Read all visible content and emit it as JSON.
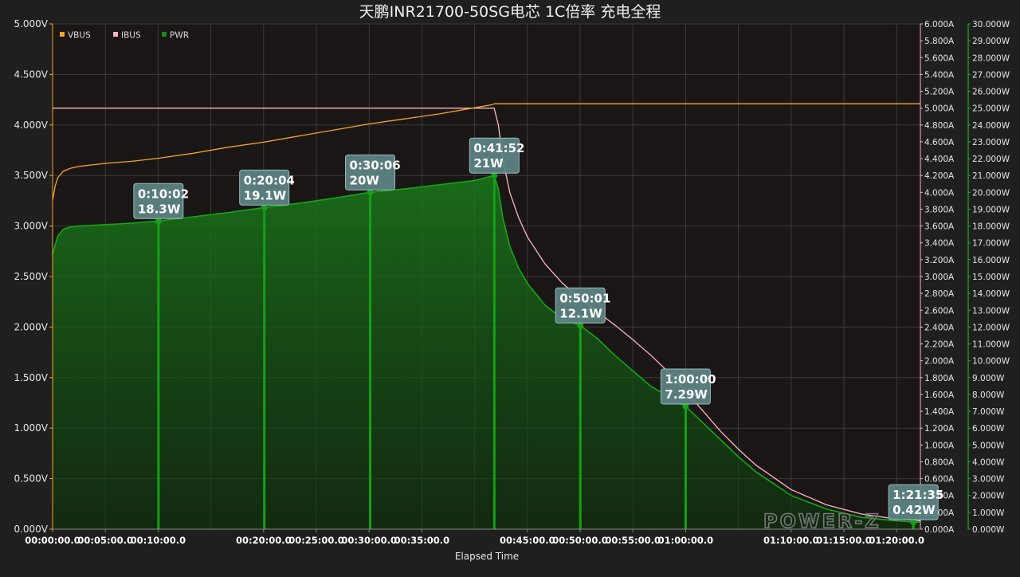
{
  "chart_data": {
    "type": "line",
    "title": "天鹏INR21700-50SG电芯 1C倍率 充电全程",
    "xlabel": "Elapsed Time",
    "x_unit": "seconds",
    "xlim": [
      0,
      4935
    ],
    "x_ticks": [
      {
        "value": 0,
        "label": "00:00:00.0"
      },
      {
        "value": 300,
        "label": "00:05:00.0"
      },
      {
        "value": 600,
        "label": "00:10:00.0"
      },
      {
        "value": 1200,
        "label": "00:20:00.0"
      },
      {
        "value": 1500,
        "label": "00:25:00.0"
      },
      {
        "value": 1800,
        "label": "00:30:00.0"
      },
      {
        "value": 2100,
        "label": "00:35:00.0"
      },
      {
        "value": 2700,
        "label": "00:45:00.0"
      },
      {
        "value": 3000,
        "label": "00:50:00.0"
      },
      {
        "value": 3300,
        "label": "00:55:00.0"
      },
      {
        "value": 3600,
        "label": "01:00:00.0"
      },
      {
        "value": 4200,
        "label": "01:10:00.0"
      },
      {
        "value": 4500,
        "label": "01:15:00.0"
      },
      {
        "value": 4800,
        "label": "01:20:00.0"
      }
    ],
    "x_grid": [
      0,
      300,
      600,
      900,
      1200,
      1500,
      1800,
      2100,
      2400,
      2700,
      3000,
      3300,
      3600,
      3900,
      4200,
      4500,
      4800
    ],
    "axes": {
      "left": {
        "name": "VBUS",
        "range": [
          0,
          5
        ],
        "ticks": [
          "0.000V",
          "0.500V",
          "1.000V",
          "1.500V",
          "2.000V",
          "2.500V",
          "3.000V",
          "3.500V",
          "4.000V",
          "4.500V",
          "5.000V"
        ],
        "color": "#f5a623"
      },
      "right1": {
        "name": "IBUS",
        "range": [
          0,
          6
        ],
        "ticks": [
          "0.000A",
          "0.200A",
          "0.400A",
          "0.600A",
          "0.800A",
          "1.000A",
          "1.200A",
          "1.400A",
          "1.600A",
          "1.800A",
          "2.000A",
          "2.200A",
          "2.400A",
          "2.600A",
          "2.800A",
          "3.000A",
          "3.200A",
          "3.400A",
          "3.600A",
          "3.800A",
          "4.000A",
          "4.200A",
          "4.400A",
          "4.600A",
          "4.800A",
          "5.000A",
          "5.200A",
          "5.400A",
          "5.600A",
          "5.800A",
          "6.000A"
        ],
        "color": "#ffb6c1"
      },
      "right2": {
        "name": "PWR",
        "range": [
          0,
          30
        ],
        "ticks": [
          "0.000W",
          "1.000W",
          "2.000W",
          "3.000W",
          "4.000W",
          "5.000W",
          "6.000W",
          "7.000W",
          "8.000W",
          "9.000W",
          "10.000W",
          "11.000W",
          "12.000W",
          "13.000W",
          "14.000W",
          "15.000W",
          "16.000W",
          "17.000W",
          "18.000W",
          "19.000W",
          "20.000W",
          "21.000W",
          "22.000W",
          "23.000W",
          "24.000W",
          "25.000W",
          "26.000W",
          "27.000W",
          "28.000W",
          "29.000W",
          "30.000W"
        ],
        "color": "#1db31d"
      }
    },
    "legend": [
      {
        "name": "VBUS",
        "color": "#f5a623"
      },
      {
        "name": "IBUS",
        "color": "#ffb6c1"
      },
      {
        "name": "PWR",
        "color": "#1a8a1a"
      }
    ],
    "legend_position": "top-left",
    "grid": true,
    "series": [
      {
        "name": "VBUS",
        "axis": "left",
        "color": "#f5a623",
        "x": [
          0,
          15,
          30,
          60,
          100,
          150,
          200,
          300,
          450,
          600,
          800,
          1000,
          1200,
          1400,
          1600,
          1800,
          2000,
          2200,
          2400,
          2500,
          2511,
          2530,
          2700,
          3000,
          3500,
          4000,
          4500,
          4935
        ],
        "y": [
          3.25,
          3.4,
          3.48,
          3.54,
          3.57,
          3.59,
          3.6,
          3.62,
          3.64,
          3.67,
          3.72,
          3.78,
          3.83,
          3.89,
          3.95,
          4.01,
          4.06,
          4.11,
          4.17,
          4.2,
          4.21,
          4.21,
          4.21,
          4.21,
          4.21,
          4.21,
          4.21,
          4.21
        ]
      },
      {
        "name": "IBUS",
        "axis": "right1",
        "color": "#ffb6c1",
        "x": [
          0,
          2511,
          2535,
          2560,
          2600,
          2650,
          2700,
          2800,
          2900,
          3000,
          3100,
          3200,
          3300,
          3400,
          3500,
          3600,
          3700,
          3800,
          3900,
          4000,
          4200,
          4400,
          4600,
          4800,
          4935
        ],
        "y": [
          5.0,
          5.0,
          4.8,
          4.4,
          4.0,
          3.7,
          3.47,
          3.15,
          2.92,
          2.74,
          2.58,
          2.42,
          2.25,
          2.07,
          1.87,
          1.64,
          1.4,
          1.16,
          0.95,
          0.76,
          0.47,
          0.29,
          0.18,
          0.12,
          0.1
        ]
      },
      {
        "name": "PWR",
        "axis": "right2",
        "color": "#1a8a1a",
        "fill": true,
        "x": [
          0,
          15,
          30,
          60,
          100,
          150,
          200,
          300,
          450,
          602,
          800,
          1000,
          1204,
          1400,
          1600,
          1806,
          2000,
          2200,
          2400,
          2511,
          2535,
          2560,
          2600,
          2650,
          2700,
          2800,
          2900,
          3001,
          3100,
          3200,
          3300,
          3400,
          3500,
          3600,
          3700,
          3800,
          3900,
          4000,
          4200,
          4400,
          4600,
          4800,
          4895,
          4935
        ],
        "y": [
          16.3,
          16.9,
          17.4,
          17.8,
          17.95,
          18.0,
          18.03,
          18.08,
          18.17,
          18.3,
          18.55,
          18.8,
          19.1,
          19.35,
          19.65,
          20.0,
          20.2,
          20.45,
          20.7,
          21.0,
          20.2,
          18.5,
          16.8,
          15.5,
          14.6,
          13.3,
          12.5,
          12.1,
          11.3,
          10.3,
          9.4,
          8.5,
          7.9,
          7.29,
          6.3,
          5.3,
          4.3,
          3.4,
          2.0,
          1.2,
          0.7,
          0.5,
          0.42,
          0.42
        ]
      }
    ],
    "annotations": [
      {
        "x": 602,
        "y": 18.3,
        "time": "0:10:02",
        "value": "18.3W"
      },
      {
        "x": 1204,
        "y": 19.1,
        "time": "0:20:04",
        "value": "19.1W"
      },
      {
        "x": 1806,
        "y": 20.0,
        "time": "0:30:06",
        "value": "20W"
      },
      {
        "x": 2512,
        "y": 21.0,
        "time": "0:41:52",
        "value": "21W"
      },
      {
        "x": 3001,
        "y": 12.1,
        "time": "0:50:01",
        "value": "12.1W"
      },
      {
        "x": 3600,
        "y": 7.29,
        "time": "1:00:00",
        "value": "7.29W"
      },
      {
        "x": 4895,
        "y": 0.42,
        "time": "1:21:35",
        "value": "0.42W"
      }
    ],
    "watermark": "POWER-Z"
  }
}
